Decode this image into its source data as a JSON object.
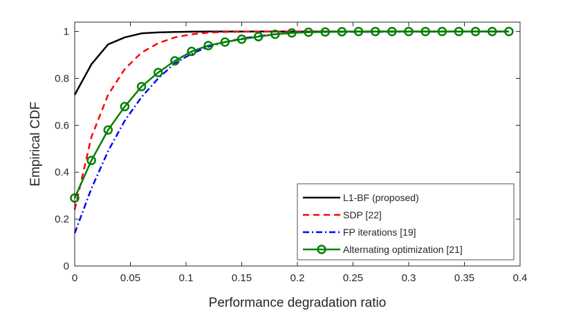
{
  "chart_data": {
    "type": "line",
    "title": "",
    "xlabel": "Performance degradation ratio",
    "ylabel": "Empirical CDF",
    "xlim": [
      0,
      0.4
    ],
    "ylim": [
      0,
      1.04
    ],
    "grid": false,
    "legend_position": "bottom-right",
    "xticks": [
      0,
      0.05,
      0.1,
      0.15,
      0.2,
      0.25,
      0.3,
      0.35,
      0.4
    ],
    "xtick_labels": [
      "0",
      "0.05",
      "0.1",
      "0.15",
      "0.2",
      "0.25",
      "0.3",
      "0.35",
      "0.4"
    ],
    "yticks": [
      0,
      0.2,
      0.4,
      0.6,
      0.8,
      1
    ],
    "ytick_labels": [
      "0",
      "0.2",
      "0.4",
      "0.6",
      "0.8",
      "1"
    ],
    "series": [
      {
        "name": "L1-BF (proposed)",
        "color": "#000000",
        "dash": "solid",
        "marker": "none",
        "x": [
          0,
          0.015,
          0.03,
          0.045,
          0.06,
          0.075,
          0.09,
          0.105,
          0.12,
          0.135,
          0.15,
          0.39
        ],
        "y": [
          0.73,
          0.86,
          0.945,
          0.975,
          0.992,
          0.996,
          0.998,
          0.999,
          1.0,
          1.0,
          1.0,
          1.0
        ]
      },
      {
        "name": "SDP [22]",
        "color": "#ff0000",
        "dash": "dashed",
        "marker": "none",
        "x": [
          0,
          0.015,
          0.03,
          0.045,
          0.06,
          0.075,
          0.09,
          0.105,
          0.12,
          0.135,
          0.15,
          0.165,
          0.39
        ],
        "y": [
          0.24,
          0.55,
          0.73,
          0.84,
          0.91,
          0.95,
          0.975,
          0.988,
          0.995,
          0.998,
          0.999,
          1.0,
          1.0
        ]
      },
      {
        "name": "FP iterations [19]",
        "color": "#0000ff",
        "dash": "dashdot",
        "marker": "none",
        "x": [
          0,
          0.015,
          0.03,
          0.045,
          0.06,
          0.075,
          0.09,
          0.105,
          0.12,
          0.135,
          0.15,
          0.165,
          0.18,
          0.195,
          0.21,
          0.39
        ],
        "y": [
          0.14,
          0.33,
          0.49,
          0.62,
          0.72,
          0.8,
          0.865,
          0.905,
          0.935,
          0.955,
          0.97,
          0.98,
          0.988,
          0.994,
          0.998,
          1.0
        ]
      },
      {
        "name": "Alternating optimization [21]",
        "color": "#008000",
        "dash": "solid",
        "marker": "circle",
        "x": [
          0,
          0.015,
          0.03,
          0.045,
          0.06,
          0.075,
          0.09,
          0.105,
          0.12,
          0.135,
          0.15,
          0.165,
          0.18,
          0.195,
          0.21,
          0.225,
          0.24,
          0.255,
          0.27,
          0.285,
          0.3,
          0.315,
          0.33,
          0.345,
          0.36,
          0.375,
          0.39
        ],
        "y": [
          0.29,
          0.45,
          0.58,
          0.68,
          0.765,
          0.825,
          0.875,
          0.915,
          0.94,
          0.955,
          0.967,
          0.978,
          0.988,
          0.994,
          0.997,
          0.998,
          0.999,
          1.0,
          1.0,
          1.0,
          1.0,
          1.0,
          1.0,
          1.0,
          1.0,
          1.0,
          1.0
        ]
      }
    ]
  }
}
